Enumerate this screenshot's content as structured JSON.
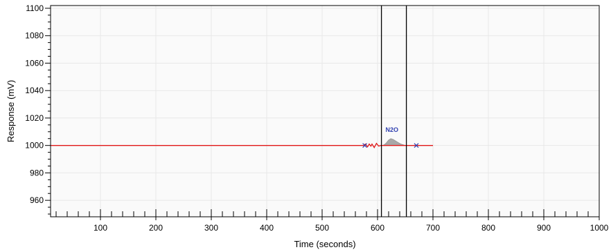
{
  "chart_data": {
    "type": "line",
    "xlabel": "Time (seconds)",
    "ylabel": "Response (mV)",
    "xlim": [
      10,
      1000
    ],
    "ylim": [
      948,
      1102
    ],
    "xticks": [
      100,
      200,
      300,
      400,
      500,
      600,
      700,
      800,
      900,
      1000
    ],
    "yticks": [
      960,
      980,
      1000,
      1020,
      1040,
      1060,
      1080,
      1100
    ],
    "grid": true,
    "colors": {
      "trace": "#e01818",
      "peak_fill": "#a8a8a8",
      "marker": "#3040b0",
      "cursor": "#000000",
      "plot_bg": "#fafafa",
      "grid": "#e8e8e8"
    },
    "series": [
      {
        "x": [
          10,
          575,
          578,
          582,
          585,
          588,
          590,
          594,
          598,
          602,
          606,
          700
        ],
        "y": [
          1000,
          1000,
          1001,
          999,
          1001,
          999.5,
          1001,
          998.5,
          1001.5,
          999.5,
          1000,
          1000
        ]
      }
    ],
    "peaks": [
      {
        "label": "N2O",
        "x": [
          608,
          612,
          616,
          620,
          624,
          628,
          632,
          636,
          640,
          644,
          648,
          652,
          656,
          660
        ],
        "y": [
          1000,
          1000.5,
          1002,
          1004,
          1005,
          1004.5,
          1003.5,
          1002.5,
          1001.5,
          1000.8,
          1000.3,
          1000,
          1000,
          1000
        ],
        "label_x": 626,
        "label_y": 1010
      }
    ],
    "markers": [
      {
        "x": 577,
        "y": 1000
      },
      {
        "x": 670,
        "y": 1000
      }
    ],
    "cursors": [
      607,
      652
    ]
  }
}
